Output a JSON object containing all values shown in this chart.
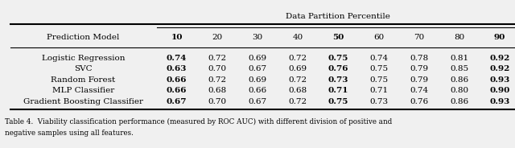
{
  "title": "Data Partition Percentile",
  "col_header": [
    "Prediction Model",
    "10",
    "20",
    "30",
    "40",
    "50",
    "60",
    "70",
    "80",
    "90"
  ],
  "bold_cols": [
    1,
    5,
    9
  ],
  "rows": [
    [
      "Logistic Regression",
      "0.74",
      "0.72",
      "0.69",
      "0.72",
      "0.75",
      "0.74",
      "0.78",
      "0.81",
      "0.92"
    ],
    [
      "SVC",
      "0.63",
      "0.70",
      "0.67",
      "0.69",
      "0.76",
      "0.75",
      "0.79",
      "0.85",
      "0.92"
    ],
    [
      "Random Forest",
      "0.66",
      "0.72",
      "0.69",
      "0.72",
      "0.73",
      "0.75",
      "0.79",
      "0.86",
      "0.93"
    ],
    [
      "MLP Classifier",
      "0.66",
      "0.68",
      "0.66",
      "0.68",
      "0.71",
      "0.71",
      "0.74",
      "0.80",
      "0.90"
    ],
    [
      "Gradient Boosting Classifier",
      "0.67",
      "0.70",
      "0.67",
      "0.72",
      "0.75",
      "0.73",
      "0.76",
      "0.86",
      "0.93"
    ]
  ],
  "caption": "Table 4.  Viability classification performance (measured by ROC AUC) with different division of positive and\nnegative samples using all features.",
  "bg_color": "#f0f0f0"
}
